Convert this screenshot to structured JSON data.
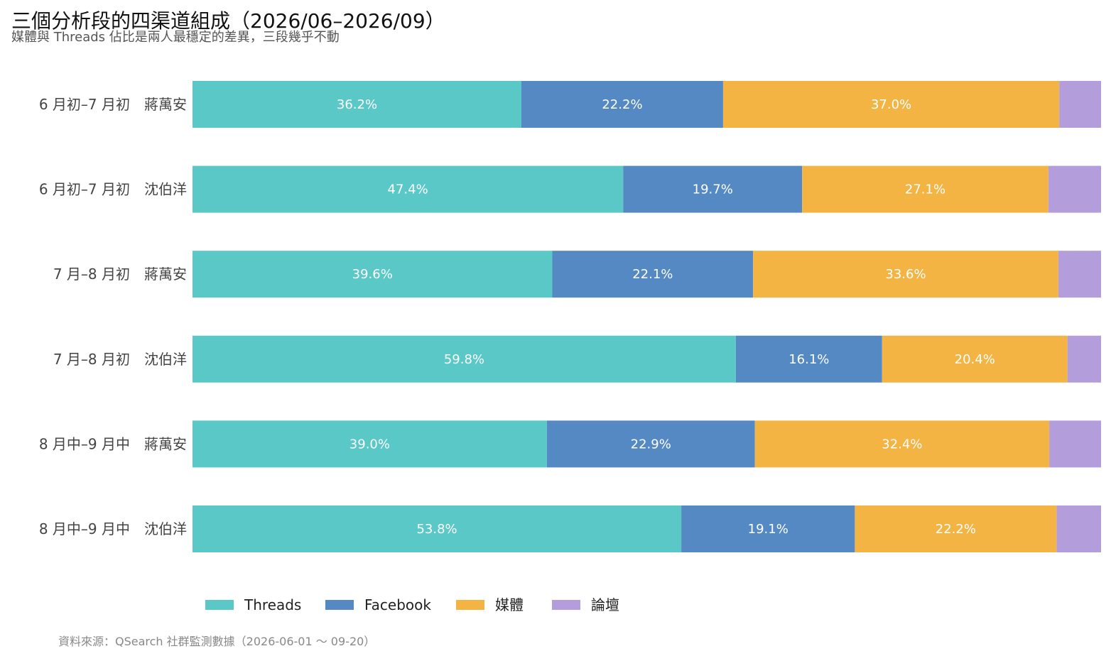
{
  "header": {
    "title": "三個分析段的四渠道組成（2026/06–2026/09）",
    "subtitle": "媒體與 Threads 佔比是兩人最穩定的差異，三段幾乎不動"
  },
  "footer": {
    "source": "資料來源：QSearch 社群監測數據（2026-06-01 ～ 09-20）"
  },
  "chart_data": {
    "type": "bar",
    "orientation": "horizontal",
    "stacked": true,
    "categories": [
      "6 月初–7 月初　蔣萬安",
      "6 月初–7 月初　沈伯洋",
      "7 月–8 月初　蔣萬安",
      "7 月–8 月初　沈伯洋",
      "8 月中–9 月中　蔣萬安",
      "8 月中–9 月中　沈伯洋"
    ],
    "series": [
      {
        "name": "Threads",
        "color": "#5BC8C8",
        "values": [
          36.2,
          47.4,
          39.6,
          59.8,
          39.0,
          53.8
        ]
      },
      {
        "name": "Facebook",
        "color": "#5589C4",
        "values": [
          22.2,
          19.7,
          22.1,
          16.1,
          22.9,
          19.1
        ]
      },
      {
        "name": "媒體",
        "color": "#F3B443",
        "values": [
          37.0,
          27.1,
          33.6,
          20.4,
          32.4,
          22.2
        ]
      },
      {
        "name": "論壇",
        "color": "#B39DDB",
        "values": [
          4.6,
          5.8,
          4.7,
          3.7,
          5.7,
          4.9
        ]
      }
    ],
    "data_labels": [
      [
        "36.2%",
        "47.4%",
        "39.6%",
        "59.8%",
        "39.0%",
        "53.8%"
      ],
      [
        "22.2%",
        "19.7%",
        "22.1%",
        "16.1%",
        "22.9%",
        "19.1%"
      ],
      [
        "37.0%",
        "27.1%",
        "33.6%",
        "20.4%",
        "32.4%",
        "22.2%"
      ],
      [
        "",
        "",
        "",
        "",
        "",
        ""
      ]
    ],
    "xlim": [
      0,
      100
    ],
    "unit": "%",
    "grid": false,
    "legend_position": "bottom-left",
    "label_color": "#ffffff"
  }
}
